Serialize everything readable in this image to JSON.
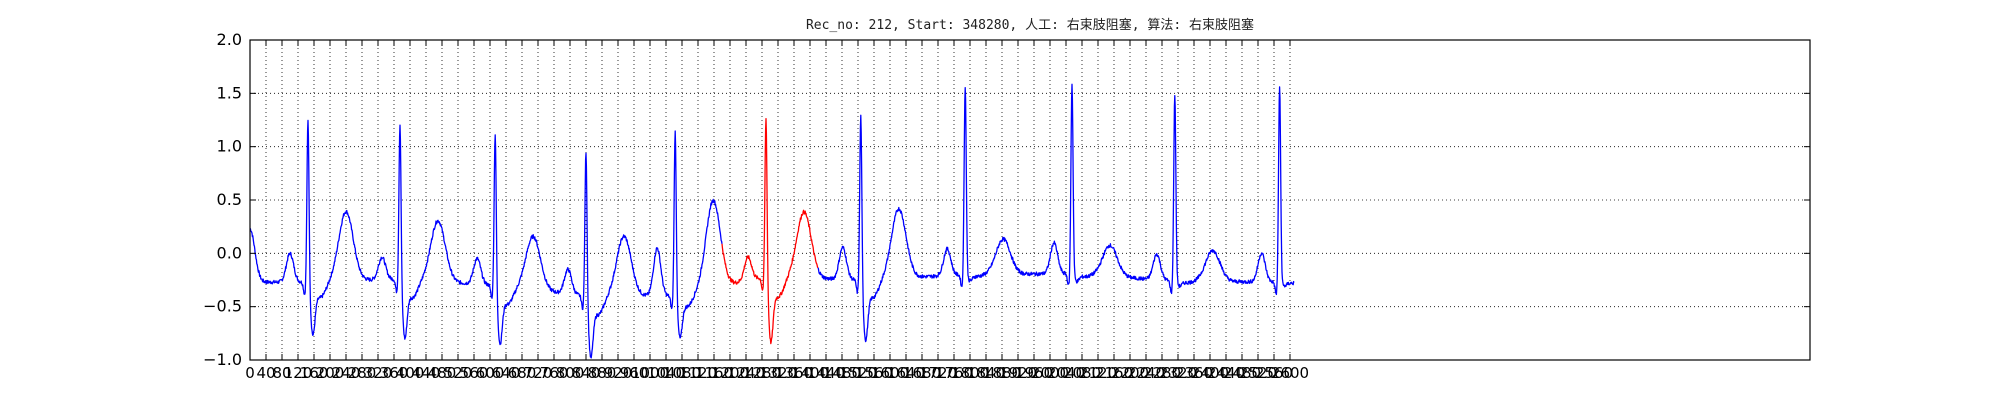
{
  "chart_data": {
    "type": "line",
    "title": "Rec_no: 212, Start: 348280, 人工: 右束肢阻塞, 算法: 右束肢阻塞",
    "xlabel": "",
    "ylabel": "",
    "xlim": [
      0,
      3900
    ],
    "ylim": [
      -1.0,
      2.0
    ],
    "grid": true,
    "grid_style": "dotted",
    "y_ticks": [
      "−1.0",
      "−0.5",
      "0.0",
      "0.5",
      "1.0",
      "1.5",
      "2.0"
    ],
    "x_ticks": [
      "0",
      "40",
      "80",
      "120",
      "160",
      "200",
      "240",
      "280",
      "320",
      "360",
      "400",
      "440",
      "480",
      "520",
      "560",
      "600",
      "640",
      "680",
      "720",
      "760",
      "800",
      "840",
      "880",
      "920",
      "960",
      "1000",
      "1040",
      "1080",
      "1120",
      "1160",
      "1200",
      "1240",
      "1280",
      "1320",
      "1360",
      "1400",
      "1440",
      "1480",
      "1520",
      "1560",
      "1600",
      "1640",
      "1680",
      "1720",
      "1760",
      "1800",
      "1840",
      "1880",
      "1920",
      "1960",
      "2000",
      "2040",
      "2080",
      "2120",
      "2160",
      "2200",
      "2240",
      "2280",
      "2320",
      "2360",
      "2400",
      "2440",
      "2480",
      "2520",
      "2560",
      "2600"
    ],
    "sample_count": 2611,
    "beats": [
      {
        "r": 145,
        "amp": 1.3,
        "s": -0.7,
        "t": 0.38,
        "p": 0.0,
        "base": -0.27
      },
      {
        "r": 375,
        "amp": 1.27,
        "s": -0.72,
        "t": 0.33,
        "p": -0.03,
        "base": -0.24
      },
      {
        "r": 613,
        "amp": 1.18,
        "s": -0.77,
        "t": 0.2,
        "p": -0.06,
        "base": -0.3
      },
      {
        "r": 840,
        "amp": 1.02,
        "s": -0.9,
        "t": 0.16,
        "p": -0.17,
        "base": -0.4
      },
      {
        "r": 1063,
        "amp": 1.19,
        "s": -0.75,
        "t": 0.42,
        "p": 0.05,
        "base": -0.4
      },
      {
        "r": 1290,
        "amp": 1.33,
        "s": -0.75,
        "t": 0.4,
        "p": 0.0,
        "base": -0.22
      },
      {
        "r": 1527,
        "amp": 1.35,
        "s": -0.74,
        "t": 0.4,
        "p": 0.05,
        "base": -0.25
      },
      {
        "r": 1788,
        "amp": 1.58,
        "s": -0.25,
        "t": 0.13,
        "p": 0.05,
        "base": -0.2
      },
      {
        "r": 2055,
        "amp": 1.6,
        "s": -0.25,
        "t": 0.1,
        "p": 0.1,
        "base": -0.19
      },
      {
        "r": 2312,
        "amp": 1.5,
        "s": -0.3,
        "t": 0.03,
        "p": -0.02,
        "base": -0.26
      },
      {
        "r": 2574,
        "amp": 1.57,
        "s": -0.3,
        "t": -0.05,
        "p": 0.0,
        "base": -0.27
      }
    ],
    "series": [
      {
        "color": "#0000ff",
        "role": "baseline beats"
      },
      {
        "color": "#ff0000",
        "role": "highlighted beat",
        "x_range": [
          1180,
          1420
        ]
      }
    ]
  }
}
